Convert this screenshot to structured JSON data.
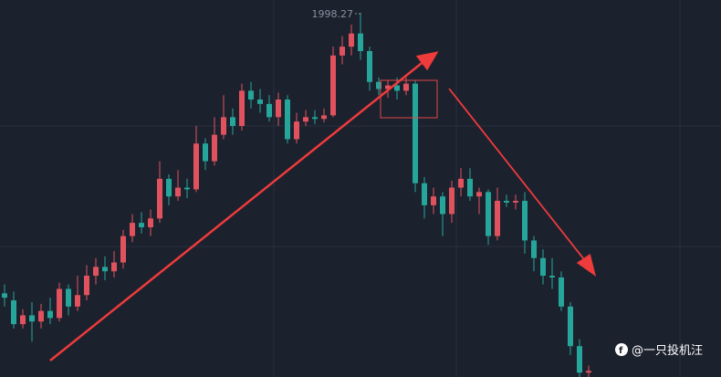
{
  "chart_data": {
    "type": "candlestick",
    "open": [
      1680,
      1672,
      1645,
      1655,
      1648,
      1660,
      1652,
      1685,
      1665,
      1678,
      1700,
      1710,
      1705,
      1715,
      1745,
      1760,
      1755,
      1765,
      1810,
      1790,
      1800,
      1798,
      1850,
      1830,
      1860,
      1880,
      1870,
      1910,
      1900,
      1895,
      1880,
      1900,
      1855,
      1875,
      1880,
      1878,
      1882,
      1950,
      1960,
      1975,
      1955,
      1920,
      1912,
      1916,
      1910,
      1918,
      1805,
      1780,
      1790,
      1770,
      1800,
      1810,
      1790,
      1795,
      1745,
      1785,
      1783,
      1785,
      1740,
      1720,
      1700,
      1698,
      1665,
      1620,
      1590
    ],
    "high": [
      1690,
      1682,
      1662,
      1670,
      1668,
      1675,
      1692,
      1690,
      1700,
      1712,
      1720,
      1722,
      1728,
      1752,
      1770,
      1772,
      1775,
      1830,
      1815,
      1820,
      1810,
      1870,
      1856,
      1880,
      1905,
      1890,
      1918,
      1920,
      1912,
      1905,
      1908,
      1905,
      1885,
      1888,
      1888,
      1890,
      1960,
      1972,
      1985,
      1998.27,
      1960,
      1925,
      1922,
      1925,
      1925,
      1922,
      1812,
      1800,
      1795,
      1808,
      1822,
      1822,
      1800,
      1798,
      1800,
      1792,
      1792,
      1795,
      1745,
      1730,
      1720,
      1705,
      1670,
      1628,
      1598
    ],
    "low": [
      1665,
      1640,
      1640,
      1625,
      1640,
      1645,
      1648,
      1655,
      1660,
      1672,
      1690,
      1695,
      1698,
      1708,
      1738,
      1748,
      1745,
      1760,
      1780,
      1785,
      1788,
      1795,
      1820,
      1825,
      1855,
      1860,
      1865,
      1890,
      1885,
      1875,
      1870,
      1850,
      1850,
      1870,
      1872,
      1874,
      1880,
      1940,
      1950,
      1945,
      1910,
      1905,
      1902,
      1900,
      1905,
      1795,
      1765,
      1770,
      1745,
      1760,
      1790,
      1785,
      1770,
      1735,
      1740,
      1778,
      1775,
      1725,
      1705,
      1690,
      1685,
      1660,
      1610,
      1585,
      1585
    ],
    "close": [
      1675,
      1645,
      1655,
      1648,
      1660,
      1652,
      1685,
      1665,
      1678,
      1700,
      1710,
      1705,
      1715,
      1745,
      1760,
      1755,
      1765,
      1810,
      1790,
      1800,
      1798,
      1850,
      1830,
      1860,
      1880,
      1870,
      1910,
      1900,
      1895,
      1880,
      1900,
      1855,
      1875,
      1880,
      1878,
      1882,
      1950,
      1960,
      1975,
      1955,
      1920,
      1912,
      1916,
      1910,
      1918,
      1805,
      1780,
      1790,
      1770,
      1800,
      1810,
      1790,
      1795,
      1745,
      1785,
      1783,
      1785,
      1740,
      1720,
      1700,
      1698,
      1665,
      1620,
      1590,
      1592
    ],
    "ylim": [
      1585,
      2013
    ],
    "up_color": "#e0535e",
    "down_color": "#26a69a"
  },
  "watermark": "@一只投机汪"
}
